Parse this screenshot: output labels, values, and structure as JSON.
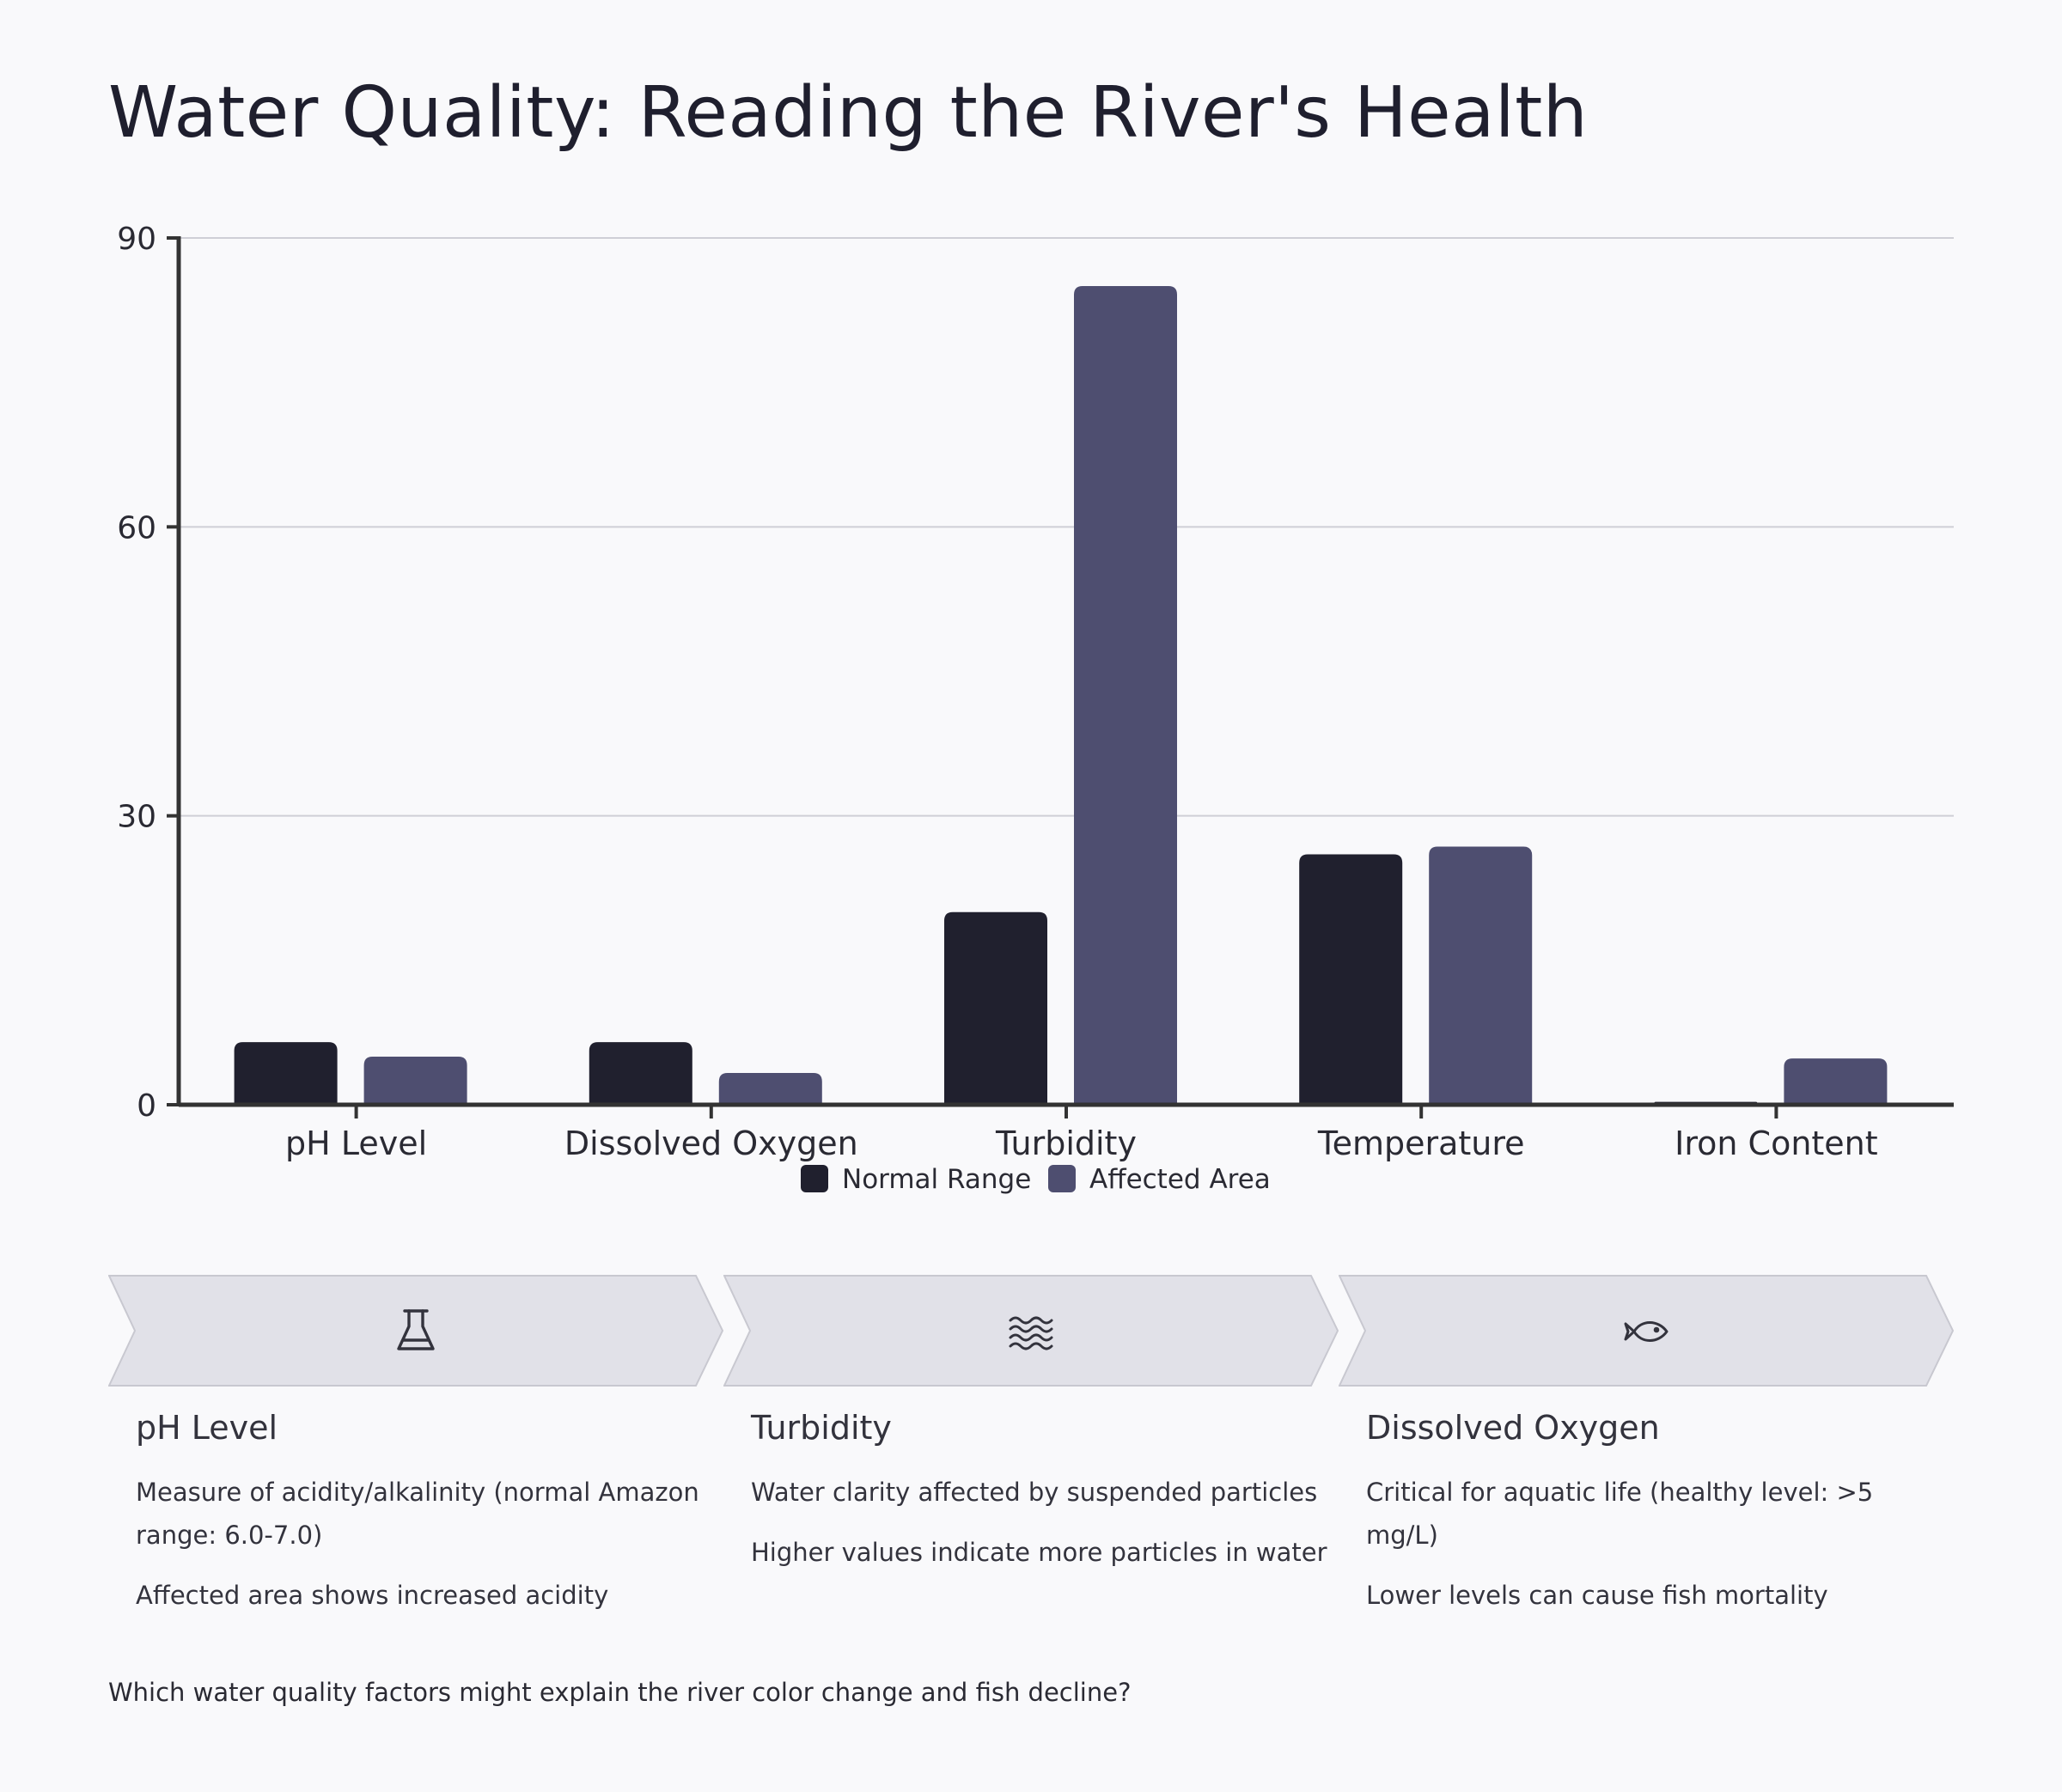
{
  "title": "Water Quality: Reading the River's Health",
  "colors": {
    "normal": "#20202e",
    "affected": "#4e4e70",
    "card_bg": "#e1e1e8",
    "card_border": "#c8c8d0"
  },
  "chart_data": {
    "type": "bar",
    "categories": [
      "pH Level",
      "Dissolved Oxygen",
      "Turbidity",
      "Temperature",
      "Iron Content"
    ],
    "series": [
      {
        "name": "Normal Range",
        "values": [
          6.5,
          6.5,
          20,
          26,
          0.3
        ]
      },
      {
        "name": "Affected Area",
        "values": [
          5,
          3.3,
          85,
          26.8,
          4.8
        ]
      }
    ],
    "yticks": [
      0,
      30,
      60,
      90
    ],
    "ylim": [
      0,
      90
    ],
    "grid": true,
    "legend": "bottom-center",
    "title": "",
    "xlabel": "",
    "ylabel": ""
  },
  "cards": [
    {
      "icon": "flask-icon",
      "title": "pH Level",
      "lines": [
        "Measure of acidity/alkalinity (normal Amazon range: 6.0-7.0)",
        "Affected area shows increased acidity"
      ]
    },
    {
      "icon": "waves-icon",
      "title": "Turbidity",
      "lines": [
        "Water clarity affected by suspended particles",
        "Higher values indicate more particles in water"
      ]
    },
    {
      "icon": "fish-icon",
      "title": "Dissolved Oxygen",
      "lines": [
        "Critical for aquatic life (healthy level: >5 mg/L)",
        "Lower levels can cause fish mortality"
      ]
    }
  ],
  "question": "Which water quality factors might explain the river color change and fish decline?"
}
